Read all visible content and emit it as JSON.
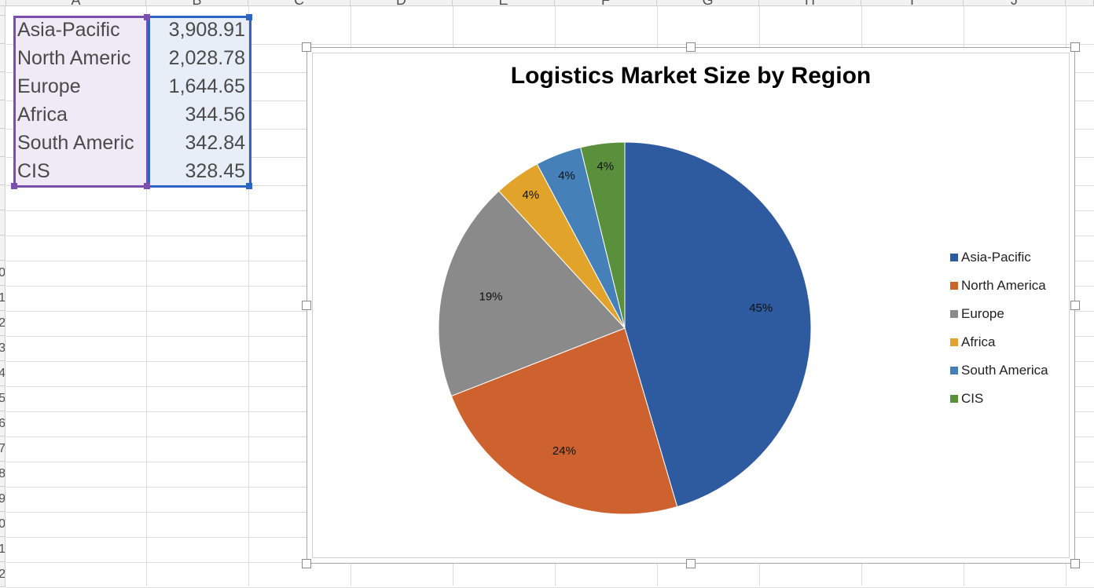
{
  "spreadsheet": {
    "columns": [
      "A",
      "B",
      "C",
      "D",
      "E",
      "F",
      "G",
      "H",
      "I",
      "J"
    ],
    "row_numbers": [
      "0",
      "1",
      "2",
      "3",
      "4",
      "5",
      "6",
      "7",
      "8",
      "9",
      "0",
      "1",
      "2"
    ],
    "cells": [
      {
        "a": "Asia-Pacific",
        "b": "3,908.91"
      },
      {
        "a": "North Americ",
        "b": "2,028.78"
      },
      {
        "a": "Europe",
        "b": "1,644.65"
      },
      {
        "a": "Africa",
        "b": "344.56"
      },
      {
        "a": "South Americ",
        "b": "342.84"
      },
      {
        "a": "CIS",
        "b": "328.45"
      }
    ],
    "selection_colors": {
      "label_range": "#7b4fb0",
      "value_range": "#2a64c4"
    }
  },
  "chart_data": {
    "type": "pie",
    "title": "Logistics Market Size by Region",
    "categories": [
      "Asia-Pacific",
      "North America",
      "Europe",
      "Africa",
      "South America",
      "CIS"
    ],
    "values": [
      3908.91,
      2028.78,
      1644.65,
      344.56,
      342.84,
      328.45
    ],
    "data_labels": [
      "45%",
      "24%",
      "19%",
      "4%",
      "4%",
      "4%"
    ],
    "colors": [
      "#2e5aa0",
      "#cd622e",
      "#8a8a8a",
      "#e2a32a",
      "#4580b8",
      "#5a8f3c"
    ],
    "legend_position": "right",
    "start_angle_deg": 0,
    "direction": "clockwise"
  }
}
